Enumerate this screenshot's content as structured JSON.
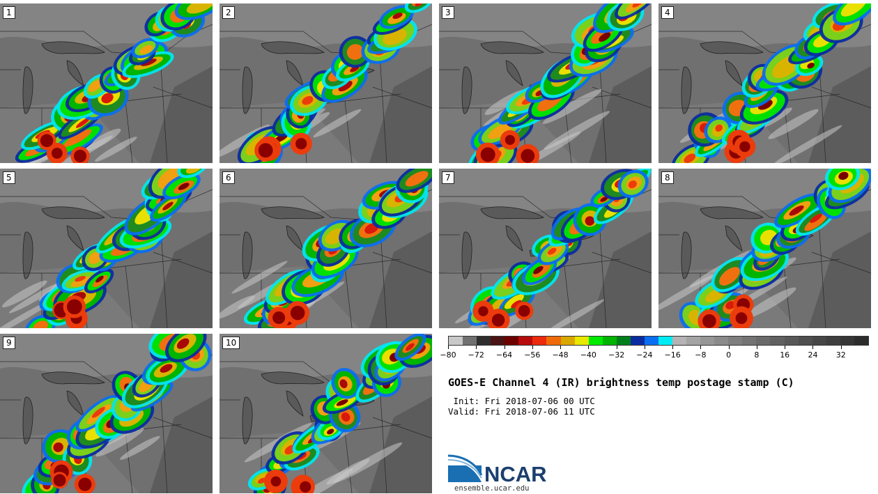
{
  "panels": [
    {
      "label": "1"
    },
    {
      "label": "2"
    },
    {
      "label": "3"
    },
    {
      "label": "4"
    },
    {
      "label": "5"
    },
    {
      "label": "6"
    },
    {
      "label": "7"
    },
    {
      "label": "8"
    },
    {
      "label": "9"
    },
    {
      "label": "10"
    }
  ],
  "title": "GOES-E Channel 4 (IR) brightness temp postage stamp (C)",
  "init_text": " Init: Fri 2018-07-06 00 UTC",
  "valid_text": "Valid: Fri 2018-07-06 11 UTC",
  "site": "ensemble.ucar.edu",
  "logo_text": "NCAR",
  "colorbar": {
    "min": -80,
    "max": 40,
    "step": 4,
    "tick_labels": [
      "−80",
      "−72",
      "−64",
      "−56",
      "−48",
      "−40",
      "−32",
      "−24",
      "−16",
      "−8",
      "0",
      "8",
      "16",
      "24",
      "32"
    ],
    "tick_values": [
      -80,
      -72,
      -64,
      -56,
      -48,
      -40,
      -32,
      -24,
      -16,
      -8,
      0,
      8,
      16,
      24,
      32
    ],
    "colors": [
      "#c8c8c8",
      "#707070",
      "#2e2e2e",
      "#4a1414",
      "#6e0000",
      "#b80c0c",
      "#ec2a0c",
      "#f06a0a",
      "#d8a800",
      "#e8e800",
      "#00ea00",
      "#00b400",
      "#007e1a",
      "#0a2ca0",
      "#0a6ef0",
      "#00ecf4",
      "#b4b4b4",
      "#a4a4a4",
      "#969696",
      "#8a8a8a",
      "#7e7e7e",
      "#747474",
      "#6a6a6a",
      "#616161",
      "#585858",
      "#4f4f4f",
      "#474747",
      "#3f3f3f",
      "#363636",
      "#2c2c2c"
    ]
  }
}
